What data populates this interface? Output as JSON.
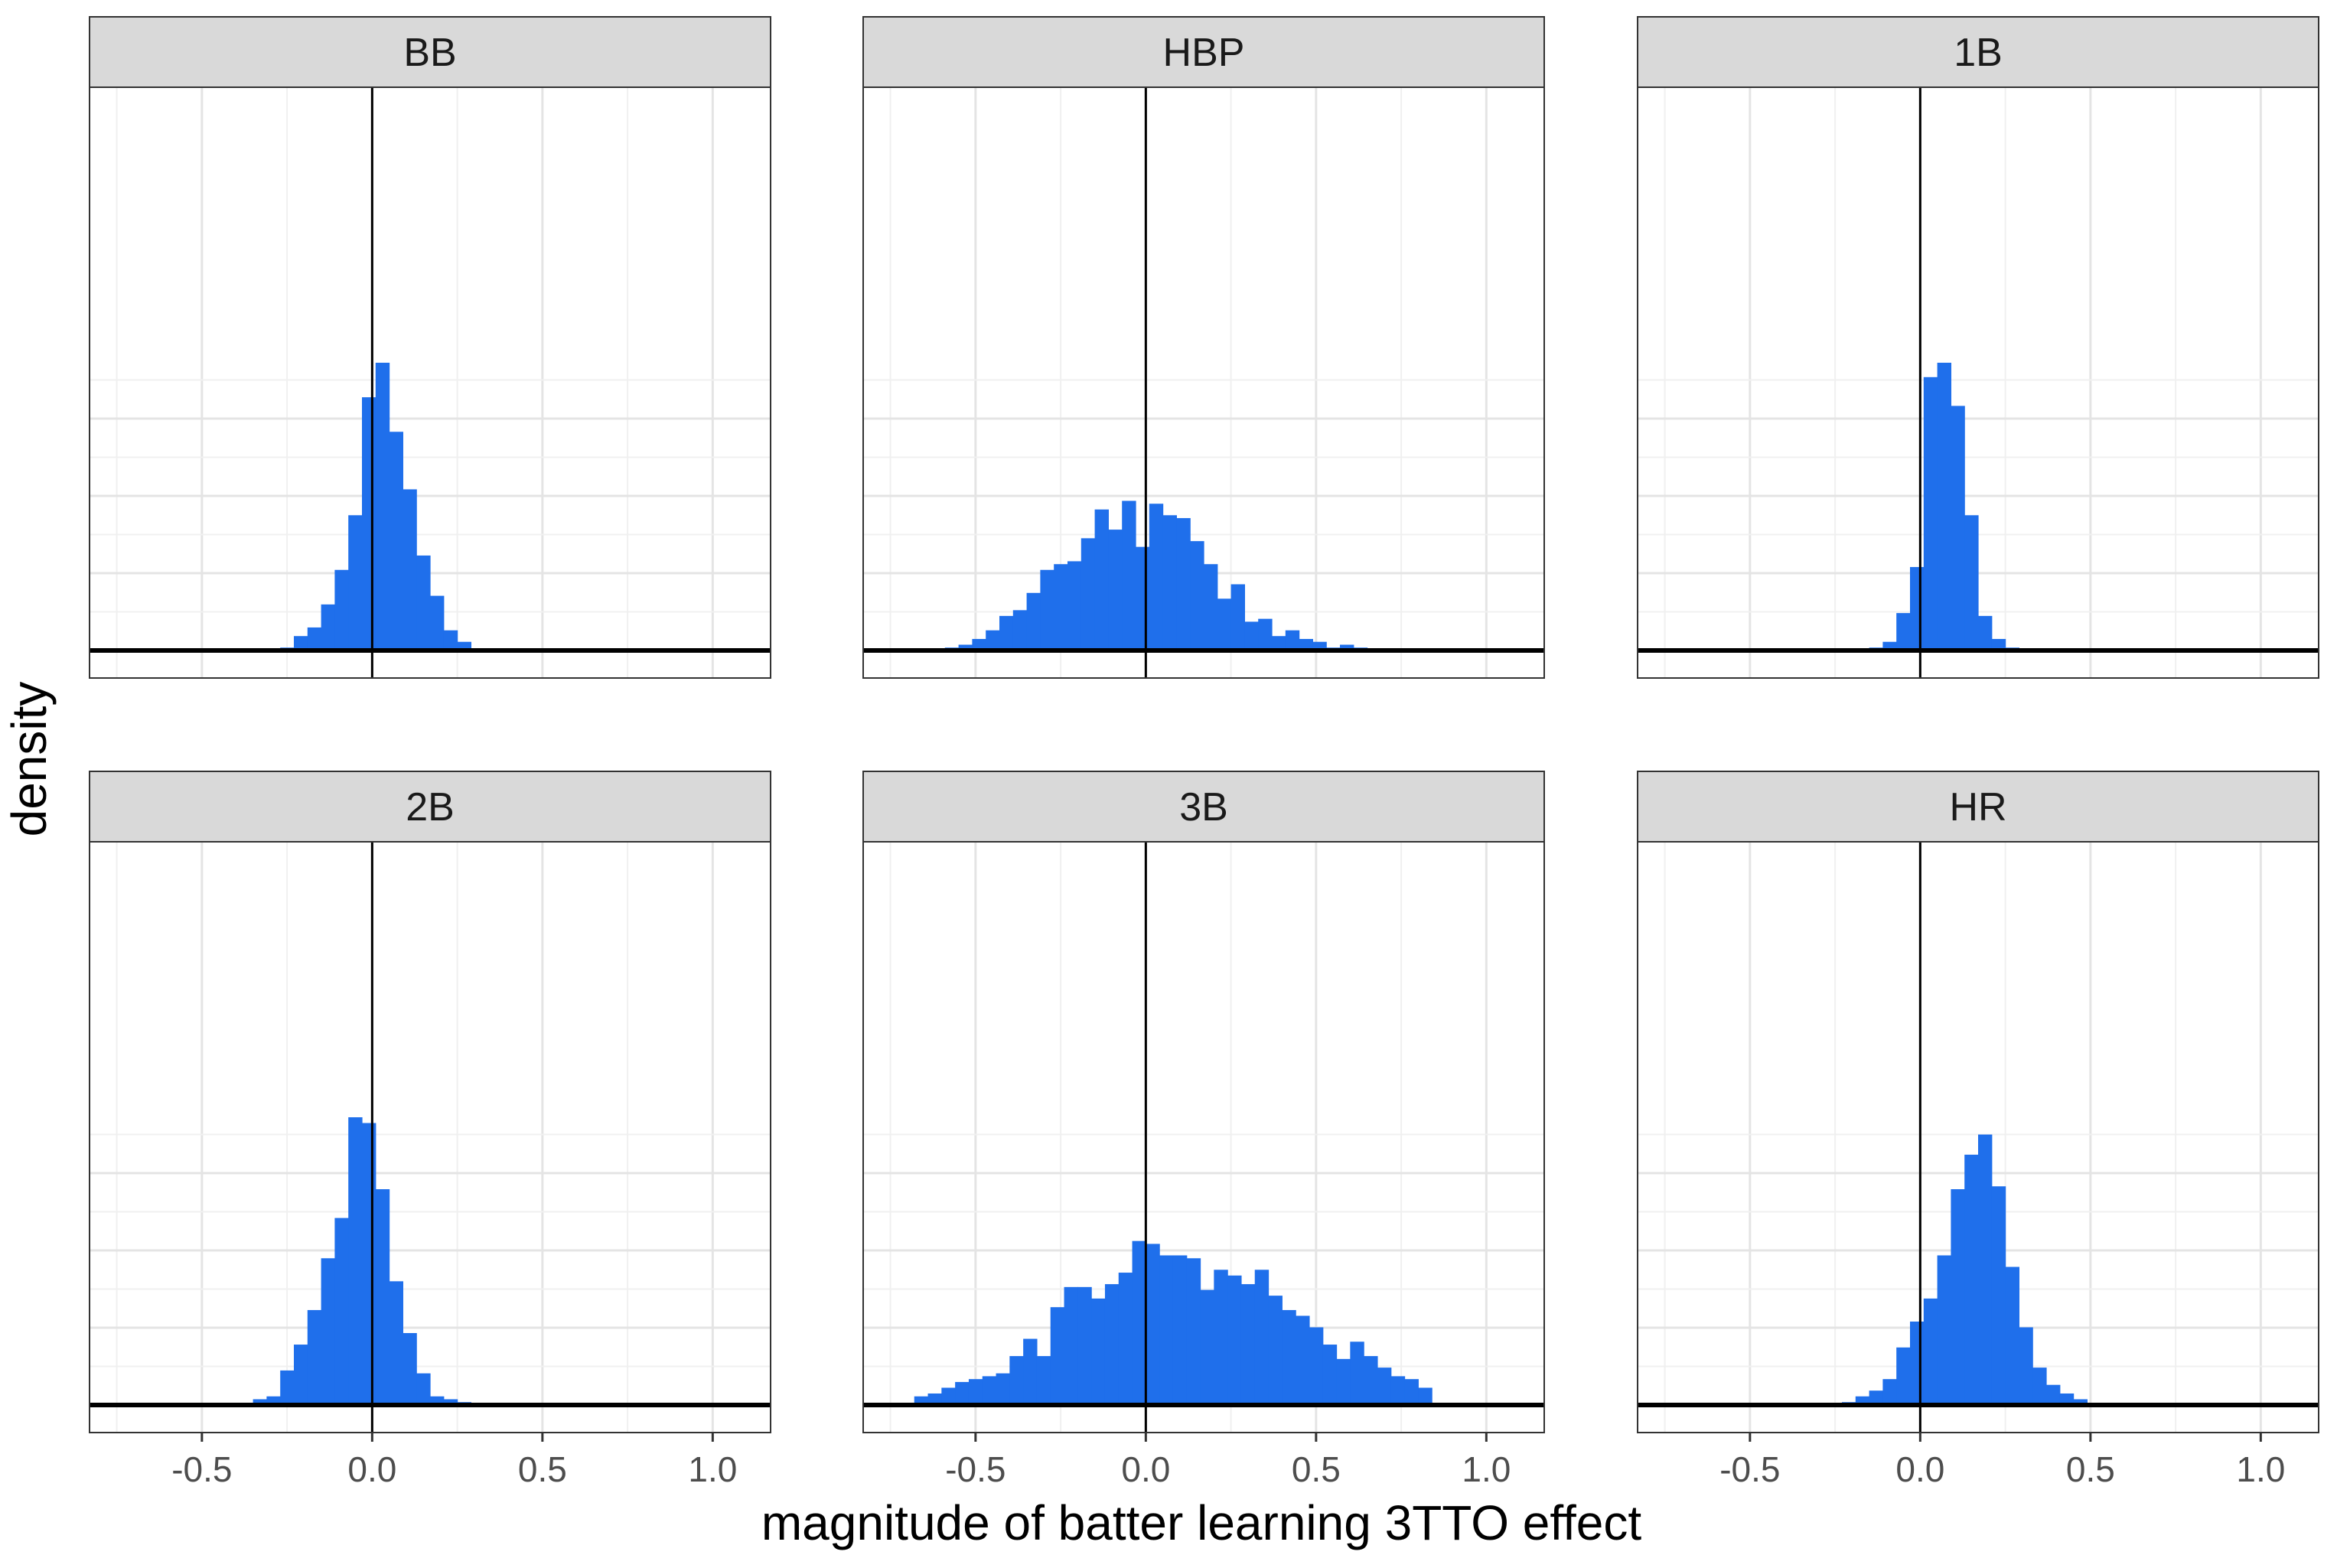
{
  "chart_data": {
    "type": "bar",
    "xlabel": "magnitude of batter learning 3TTO effect",
    "ylabel": "density",
    "xlim": [
      -0.83,
      1.17
    ],
    "x_ticks": [
      "-0.5",
      "0.0",
      "0.5",
      "1.0"
    ],
    "x_tick_values": [
      -0.5,
      0.0,
      0.5,
      1.0
    ],
    "bin_width": 0.04,
    "ylim": [
      0,
      1
    ],
    "grid": true,
    "bar_color": "#1f6feb",
    "panels": [
      {
        "name": "BB",
        "x0": -0.27,
        "values": [
          0.01,
          0.05,
          0.08,
          0.16,
          0.28,
          0.47,
          0.88,
          1.0,
          0.76,
          0.56,
          0.33,
          0.19,
          0.07,
          0.03
        ]
      },
      {
        "name": "HBP",
        "x0": -0.59,
        "values": [
          0.01,
          0.02,
          0.04,
          0.07,
          0.12,
          0.14,
          0.2,
          0.28,
          0.3,
          0.31,
          0.39,
          0.49,
          0.42,
          0.52,
          0.36,
          0.51,
          0.47,
          0.46,
          0.38,
          0.3,
          0.18,
          0.23,
          0.1,
          0.11,
          0.05,
          0.07,
          0.04,
          0.03,
          0.01,
          0.02,
          0.01
        ]
      },
      {
        "name": "1B",
        "x0": -0.15,
        "values": [
          0.01,
          0.03,
          0.13,
          0.29,
          0.95,
          1.0,
          0.85,
          0.47,
          0.12,
          0.04,
          0.01
        ]
      },
      {
        "name": "2B",
        "x0": -0.35,
        "values": [
          0.02,
          0.03,
          0.12,
          0.21,
          0.33,
          0.51,
          0.65,
          1.0,
          0.98,
          0.75,
          0.43,
          0.25,
          0.11,
          0.03,
          0.02,
          0.01
        ]
      },
      {
        "name": "3B",
        "x0": -0.68,
        "values": [
          0.03,
          0.04,
          0.06,
          0.08,
          0.09,
          0.1,
          0.11,
          0.17,
          0.23,
          0.17,
          0.34,
          0.41,
          0.41,
          0.37,
          0.42,
          0.46,
          0.57,
          0.56,
          0.52,
          0.52,
          0.51,
          0.4,
          0.47,
          0.45,
          0.42,
          0.47,
          0.38,
          0.33,
          0.31,
          0.27,
          0.21,
          0.16,
          0.22,
          0.17,
          0.13,
          0.1,
          0.09,
          0.06
        ]
      },
      {
        "name": "HR",
        "x0": -0.23,
        "values": [
          0.01,
          0.03,
          0.05,
          0.09,
          0.2,
          0.29,
          0.37,
          0.52,
          0.75,
          0.87,
          0.94,
          0.76,
          0.48,
          0.27,
          0.13,
          0.07,
          0.04,
          0.02
        ]
      }
    ]
  }
}
